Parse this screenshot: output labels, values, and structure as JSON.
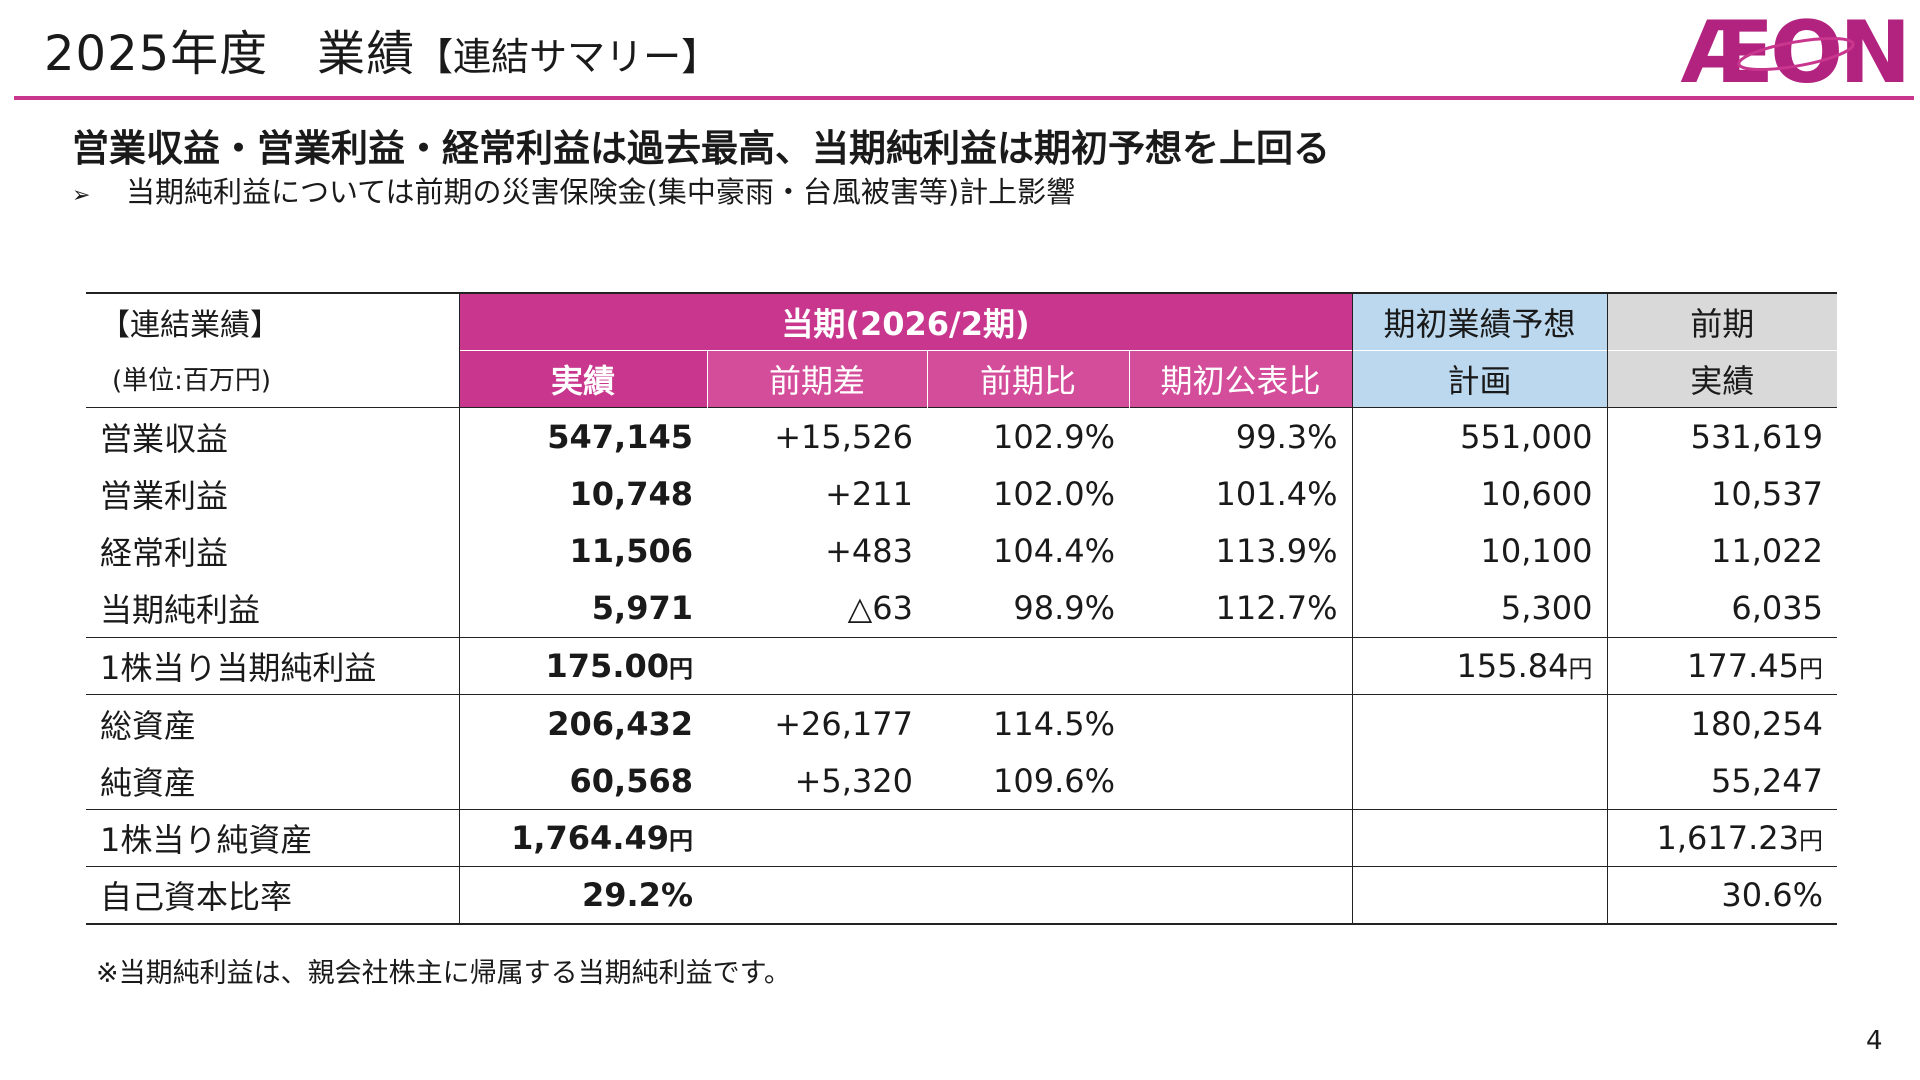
{
  "header": {
    "title_main": "2025年度　業績",
    "title_sub": "【連結サマリー】",
    "logo_text": "ÆON",
    "accent_color": "#c8368e"
  },
  "headline": "営業収益・営業利益・経常利益は過去最高、当期純利益は期初予想を上回る",
  "bullet": {
    "marker": "➢",
    "text": "当期純利益については前期の災害保険金(集中豪雨・台風被害等)計上影響"
  },
  "table": {
    "corner_label": "【連結業績】",
    "unit_label": "(単位:百万円)",
    "group_current": "当期(2026/2期)",
    "group_forecast": "期初業績予想",
    "group_prior": "前期",
    "sub_headers": [
      "実績",
      "前期差",
      "前期比",
      "期初公表比",
      "計画",
      "実績"
    ],
    "rows": [
      {
        "label": "営業収益",
        "actual": "547,145",
        "diff": "+15,526",
        "ratio": "102.9%",
        "vs_plan": "99.3%",
        "plan": "551,000",
        "prior": "531,619"
      },
      {
        "label": "営業利益",
        "actual": "10,748",
        "diff": "+211",
        "ratio": "102.0%",
        "vs_plan": "101.4%",
        "plan": "10,600",
        "prior": "10,537"
      },
      {
        "label": "経常利益",
        "actual": "11,506",
        "diff": "+483",
        "ratio": "104.4%",
        "vs_plan": "113.9%",
        "plan": "10,100",
        "prior": "11,022"
      },
      {
        "label": "当期純利益",
        "actual": "5,971",
        "diff": "△63",
        "ratio": "98.9%",
        "vs_plan": "112.7%",
        "plan": "5,300",
        "prior": "6,035"
      },
      {
        "label": "1株当り当期純利益",
        "actual": "175.00",
        "actual_unit": "円",
        "diff": "",
        "ratio": "",
        "vs_plan": "",
        "plan": "155.84",
        "plan_unit": "円",
        "prior": "177.45",
        "prior_unit": "円"
      },
      {
        "label": "総資産",
        "actual": "206,432",
        "diff": "+26,177",
        "ratio": "114.5%",
        "vs_plan": "",
        "plan": "",
        "prior": "180,254"
      },
      {
        "label": "純資産",
        "actual": "60,568",
        "diff": "+5,320",
        "ratio": "109.6%",
        "vs_plan": "",
        "plan": "",
        "prior": "55,247"
      },
      {
        "label": "1株当り純資産",
        "actual": "1,764.49",
        "actual_unit": "円",
        "diff": "",
        "ratio": "",
        "vs_plan": "",
        "plan": "",
        "prior": "1,617.23",
        "prior_unit": "円"
      },
      {
        "label": "自己資本比率",
        "actual": "29.2%",
        "diff": "",
        "ratio": "",
        "vs_plan": "",
        "plan": "",
        "prior": "30.6%"
      }
    ]
  },
  "footnote": "※当期純利益は、親会社株主に帰属する当期純利益です。",
  "page_number": "4"
}
